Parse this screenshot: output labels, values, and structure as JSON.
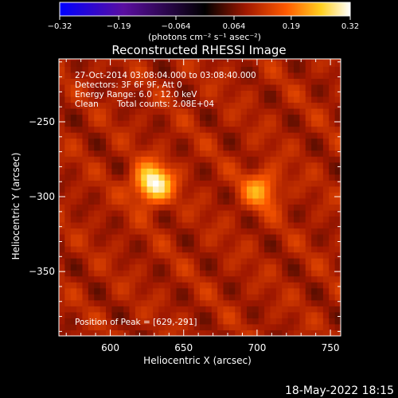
{
  "colorbar": {
    "ticks": [
      {
        "value": -0.32,
        "label": "−0.32"
      },
      {
        "value": -0.19,
        "label": "−0.19"
      },
      {
        "value": -0.064,
        "label": "−0.064"
      },
      {
        "value": 0.064,
        "label": "0.064"
      },
      {
        "value": 0.19,
        "label": "0.19"
      },
      {
        "value": 0.32,
        "label": "0.32"
      }
    ],
    "range": [
      -0.32,
      0.32
    ],
    "unit_label": "(photons cm⁻² s⁻¹ asec⁻²)",
    "colors": [
      "#0000ff",
      "#5a0ea0",
      "#000000",
      "#a01800",
      "#ff5a00",
      "#ffd020",
      "#ffffff"
    ]
  },
  "chart_data": {
    "type": "heatmap",
    "title": "Reconstructed RHESSI Image",
    "xlabel": "Heliocentric X (arcsec)",
    "ylabel": "Heliocentric Y (arcsec)",
    "xlim": [
      565,
      757
    ],
    "ylim": [
      -393,
      -208
    ],
    "xticks": [
      600,
      650,
      700,
      750
    ],
    "yticks": [
      -250,
      -300,
      -350
    ],
    "sources": [
      {
        "x": 629,
        "y": -291,
        "peak": 0.32
      },
      {
        "x": 703,
        "y": -295,
        "peak": 0.22
      }
    ],
    "background_level": 0.1,
    "annotations": {
      "time_range": "27-Oct-2014 03:08:04.000 to 03:08:40.000",
      "detectors": "Detectors: 3F 6F 9F, Att 0",
      "energy": "Energy Range: 6.0 - 12.0 keV",
      "algorithm": "Clean",
      "counts": "Total counts: 2.08E+04",
      "peak_position": "Position of Peak = [629,-291]"
    }
  },
  "footer": {
    "timestamp": "18-May-2022 18:15"
  }
}
